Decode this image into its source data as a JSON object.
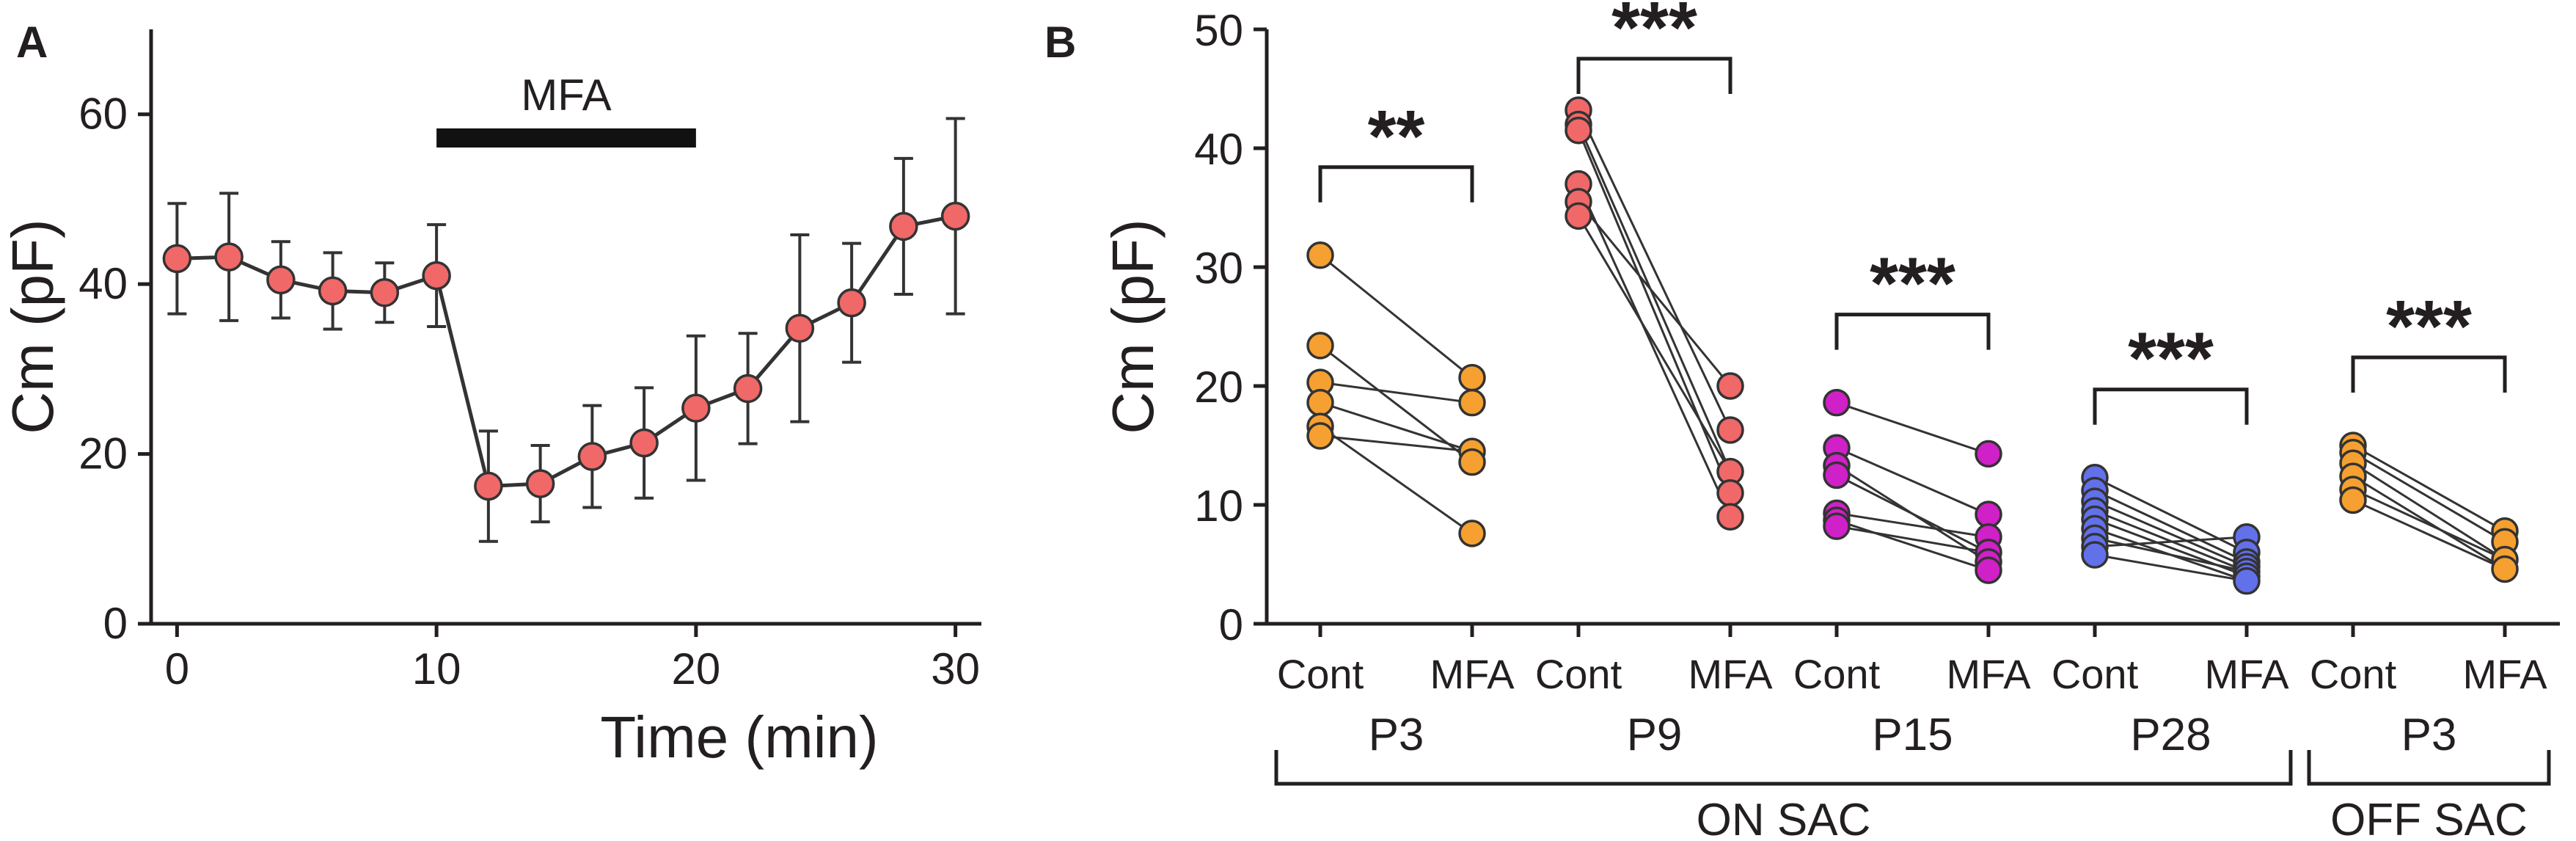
{
  "chart_data": [
    {
      "panel": "A",
      "type": "line",
      "xlabel": "Time (min)",
      "ylabel": "Cm (pF)",
      "xlim": [
        -1,
        31
      ],
      "ylim": [
        0,
        70
      ],
      "xticks": [
        0,
        10,
        20,
        30
      ],
      "yticks": [
        0,
        20,
        40,
        60
      ],
      "xtick_labels": [
        "0",
        "10",
        "20",
        "30"
      ],
      "ytick_labels": [
        "0",
        "20",
        "40",
        "60"
      ],
      "annotation": {
        "label": "MFA",
        "start": 10,
        "end": 20
      },
      "marker_color": "#f06868",
      "series": [
        {
          "name": "Cm",
          "x": [
            0,
            2,
            4,
            6,
            8,
            10,
            12,
            14,
            16,
            18,
            20,
            22,
            24,
            26,
            28,
            30
          ],
          "y": [
            43,
            43.2,
            40.5,
            39.2,
            39,
            41,
            16.2,
            16.5,
            19.7,
            21.3,
            25.4,
            27.7,
            34.8,
            37.8,
            46.8,
            48
          ],
          "err": [
            6.5,
            7.5,
            4.5,
            4.5,
            3.5,
            6,
            6.5,
            4.5,
            6,
            6.5,
            8.5,
            6.5,
            11,
            7,
            8,
            11.5
          ]
        }
      ]
    },
    {
      "panel": "B",
      "type": "scatter",
      "ylabel": "Cm (pF)",
      "ylim": [
        0,
        50
      ],
      "yticks": [
        0,
        10,
        20,
        30,
        40,
        50
      ],
      "ytick_labels": [
        "0",
        "10",
        "20",
        "30",
        "40",
        "50"
      ],
      "condition_labels": [
        "Cont",
        "MFA"
      ],
      "groups": [
        {
          "label": "P3",
          "color": "#f5a030",
          "significance": "**",
          "cont": [
            31,
            23.4,
            20.3,
            18.6,
            16.6,
            15.8
          ],
          "mfa": [
            20.7,
            18.6,
            14.5,
            13.6,
            7.6
          ]
        },
        {
          "label": "P9",
          "color": "#f06868",
          "significance": "***",
          "cont": [
            43.2,
            42,
            41.5,
            37,
            35.5,
            34.3
          ],
          "mfa": [
            20,
            16.3,
            12.8,
            11,
            9
          ]
        },
        {
          "label": "P15",
          "color": "#d020c8",
          "significance": "***",
          "cont": [
            18.6,
            14.8,
            13.3,
            12.5,
            9.3,
            8.7,
            8.2
          ],
          "mfa": [
            14.3,
            9.2,
            7.3,
            6,
            5.2,
            4.5
          ]
        },
        {
          "label": "P28",
          "color": "#6270ea",
          "significance": "***",
          "cont": [
            12.3,
            11.2,
            10.3,
            9.5,
            8.8,
            8,
            7.2,
            6.5,
            5.8
          ],
          "mfa": [
            7.3,
            6,
            5.2,
            4.8,
            4.4,
            4,
            3.6
          ]
        },
        {
          "label": "P3",
          "color": "#f5a030",
          "significance": "***",
          "cont": [
            15,
            14.4,
            13.5,
            12.4,
            11.3,
            10.4
          ],
          "mfa": [
            7.8,
            6.9,
            5.4,
            4.6
          ]
        }
      ],
      "pairs": [
        [
          [
            31,
            20.7
          ],
          [
            23.4,
            13.6
          ],
          [
            20.3,
            18.6
          ],
          [
            18.6,
            14.5
          ],
          [
            16.6,
            7.6
          ],
          [
            15.8,
            14.5
          ]
        ],
        [
          [
            43.2,
            16.3
          ],
          [
            42,
            12.8
          ],
          [
            41.5,
            11
          ],
          [
            37,
            9
          ],
          [
            35.5,
            20
          ],
          [
            34.3,
            12.8
          ]
        ],
        [
          [
            18.6,
            14.3
          ],
          [
            14.8,
            9.2
          ],
          [
            13.3,
            5.2
          ],
          [
            12.5,
            6
          ],
          [
            9.3,
            7.3
          ],
          [
            8.7,
            4.5
          ],
          [
            8.2,
            6
          ]
        ],
        [
          [
            12.3,
            6
          ],
          [
            11.2,
            5.2
          ],
          [
            10.3,
            4.8
          ],
          [
            9.5,
            4.4
          ],
          [
            8.8,
            4
          ],
          [
            8,
            3.6
          ],
          [
            7.2,
            4.4
          ],
          [
            6.5,
            7.3
          ],
          [
            5.8,
            3.6
          ]
        ],
        [
          [
            15,
            7.8
          ],
          [
            14.4,
            6.9
          ],
          [
            13.5,
            5.4
          ],
          [
            12.4,
            4.6
          ],
          [
            11.3,
            5.4
          ],
          [
            10.4,
            4.6
          ]
        ]
      ],
      "brackets": [
        {
          "label": "ON SAC",
          "groups": [
            0,
            3
          ]
        },
        {
          "label": "OFF SAC",
          "groups": [
            4,
            4
          ]
        }
      ]
    }
  ]
}
